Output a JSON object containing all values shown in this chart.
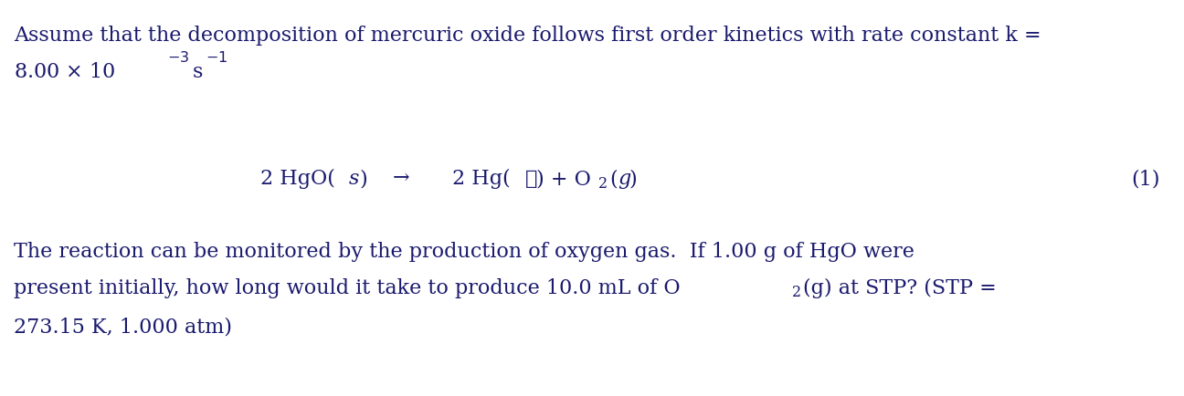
{
  "background_color": "#ffffff",
  "text_color": "#1a1a6e",
  "figsize": [
    12.96,
    4.34
  ],
  "dpi": 100,
  "line1": "Assume that the decomposition of mercuric oxide follows first order kinetics with rate constant k =",
  "paragraph1": "The reaction can be monitored by the production of oxygen gas.  If 1.00 g of HgO were",
  "paragraph2": "present initially, how long would it take to produce 10.0 mL of O",
  "paragraph2b": "(g) at STP? (STP =",
  "paragraph3": "273.15 K, 1.000 atm)",
  "font_size_main": 16,
  "font_size_sup": 11.5
}
